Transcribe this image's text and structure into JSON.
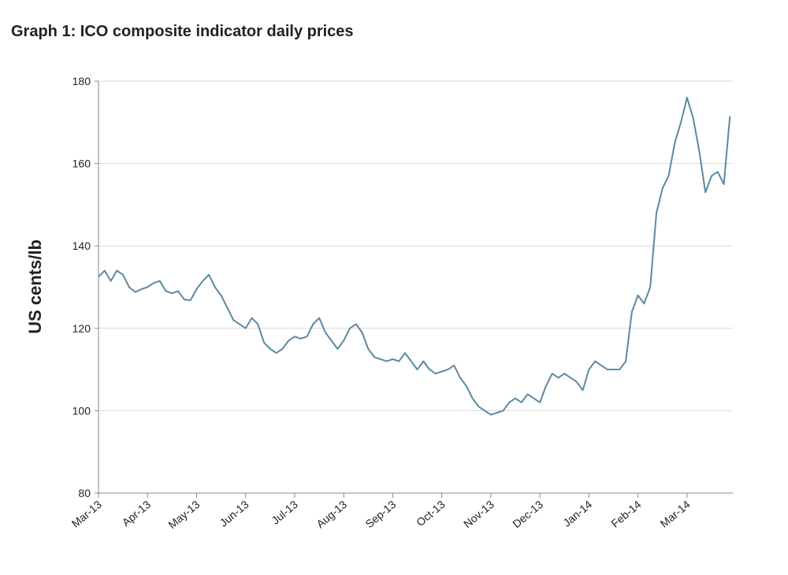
{
  "chart_data": {
    "type": "line",
    "title": "Graph 1: ICO composite indicator daily prices",
    "y_label": "US cents/lb",
    "categories": [
      "Mar-13",
      null,
      null,
      null,
      null,
      null,
      null,
      null,
      "Apr-13",
      null,
      null,
      null,
      null,
      null,
      null,
      null,
      "May-13",
      null,
      null,
      null,
      null,
      null,
      null,
      null,
      "Jun-13",
      null,
      null,
      null,
      null,
      null,
      null,
      null,
      "Jul-13",
      null,
      null,
      null,
      null,
      null,
      null,
      null,
      "Aug-13",
      null,
      null,
      null,
      null,
      null,
      null,
      null,
      "Sep-13",
      null,
      null,
      null,
      null,
      null,
      null,
      null,
      "Oct-13",
      null,
      null,
      null,
      null,
      null,
      null,
      null,
      "Nov-13",
      null,
      null,
      null,
      null,
      null,
      null,
      null,
      "Dec-13",
      null,
      null,
      null,
      null,
      null,
      null,
      null,
      "Jan-14",
      null,
      null,
      null,
      null,
      null,
      null,
      null,
      "Feb-14",
      null,
      null,
      null,
      null,
      null,
      null,
      null,
      "Mar-14",
      null,
      null,
      null,
      null,
      null,
      null,
      null
    ],
    "values": [
      132.5,
      134,
      131.5,
      134,
      133,
      130,
      128.8,
      129.5,
      130,
      131,
      131.5,
      129,
      128.5,
      129,
      127,
      126.8,
      129.5,
      131.5,
      133,
      130,
      128,
      125,
      122,
      121,
      120,
      122.5,
      121,
      116.5,
      115,
      114,
      115,
      117,
      118,
      117.5,
      118,
      121,
      122.5,
      119,
      117,
      115,
      117,
      120,
      121,
      119,
      115,
      113,
      112.5,
      112,
      112.5,
      112,
      114,
      112,
      110,
      112,
      110,
      109,
      109.5,
      110,
      111,
      108,
      106,
      103,
      101,
      100,
      99,
      99.5,
      100,
      102,
      103,
      102,
      104,
      103,
      102,
      106,
      109,
      108,
      109,
      108,
      107,
      105,
      110,
      112,
      111,
      110,
      110,
      110,
      112,
      124,
      128,
      126,
      130,
      148,
      154,
      157,
      165,
      170,
      176,
      171,
      163,
      153,
      157,
      158,
      155,
      171.5
    ],
    "color": "#5b8aa0",
    "ylim": [
      80,
      180
    ],
    "yticks": [
      80,
      100,
      120,
      140,
      160,
      180
    ],
    "grid": true
  }
}
